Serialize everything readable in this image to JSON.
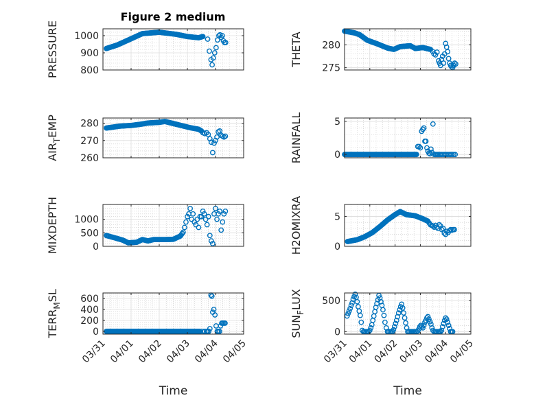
{
  "figure": {
    "title": "Figure 2 medium"
  },
  "colors": {
    "marker": "#0072BD",
    "axes": "#262626",
    "grid": "#c8c8c8",
    "background": "#ffffff"
  },
  "chart_data": [
    {
      "id": "pressure",
      "type": "scatter",
      "ylabel": "PRESSURE",
      "ylabel_parts": [
        [
          "PRESSURE",
          ""
        ]
      ],
      "title": "Figure 2 medium",
      "column": 0,
      "ylim": [
        800,
        1040
      ],
      "yticks": [
        800,
        900,
        1000
      ],
      "ytick_labels": [
        "800",
        "900",
        "1000"
      ],
      "xlim": [
        0,
        5
      ],
      "xticks": [
        0,
        1,
        2,
        3,
        4,
        5
      ],
      "xtick_labels": [
        "03/31",
        "04/01",
        "04/02",
        "04/03",
        "04/04",
        "04/05"
      ],
      "show_xticklabels": false,
      "x_units": "days since 03/31 00:00",
      "dense": [
        [
          0.12,
          925
        ],
        [
          0.5,
          945
        ],
        [
          1.0,
          982
        ],
        [
          1.4,
          1012
        ],
        [
          2.0,
          1020
        ],
        [
          2.6,
          1008
        ],
        [
          3.0,
          995
        ],
        [
          3.4,
          988
        ],
        [
          3.55,
          995
        ]
      ],
      "dense_spacing": 0.025,
      "x": [
        3.72,
        3.78,
        3.84,
        3.88,
        3.92,
        3.97,
        4.02,
        4.07,
        4.12,
        4.16,
        4.2,
        4.24,
        4.28,
        4.32,
        4.36
      ],
      "y": [
        980,
        910,
        860,
        830,
        870,
        900,
        930,
        975,
        1000,
        1005,
        990,
        1000,
        970,
        960,
        960
      ]
    },
    {
      "id": "theta",
      "type": "scatter",
      "ylabel": "THETA",
      "ylabel_parts": [
        [
          "THETA",
          ""
        ]
      ],
      "column": 1,
      "ylim": [
        274.5,
        283.5
      ],
      "yticks": [
        275,
        280
      ],
      "ytick_labels": [
        "275",
        "280"
      ],
      "xlim": [
        0,
        5
      ],
      "xticks": [
        0,
        1,
        2,
        3,
        4,
        5
      ],
      "xtick_labels": [
        "03/31",
        "04/01",
        "04/02",
        "04/03",
        "04/04",
        "04/05"
      ],
      "show_xticklabels": false,
      "x_units": "days since 03/31 00:00",
      "dense": [
        [
          0.0,
          283.0
        ],
        [
          0.4,
          282.6
        ],
        [
          0.6,
          282.2
        ],
        [
          0.9,
          281.0
        ],
        [
          1.3,
          280.2
        ],
        [
          1.7,
          279.3
        ],
        [
          1.95,
          279.0
        ],
        [
          2.2,
          279.6
        ],
        [
          2.6,
          279.8
        ],
        [
          2.8,
          279.2
        ],
        [
          3.1,
          279.4
        ],
        [
          3.4,
          279.0
        ]
      ],
      "dense_spacing": 0.025,
      "x": [
        3.48,
        3.54,
        3.6,
        3.66,
        3.72,
        3.76,
        3.8,
        3.84,
        3.88,
        3.92,
        3.96,
        4.0,
        4.04,
        4.08,
        4.12,
        4.16,
        4.2,
        4.24,
        4.28,
        4.32,
        4.36,
        4.4
      ],
      "y": [
        278.6,
        278.0,
        277.8,
        278.4,
        276.5,
        276.0,
        275.5,
        276.8,
        277.5,
        276.0,
        278.0,
        280.3,
        279.5,
        278.5,
        277.0,
        276.0,
        275.5,
        275.2,
        275.0,
        275.5,
        276.0,
        275.8
      ]
    },
    {
      "id": "air_temp",
      "type": "scatter",
      "ylabel": "AIR_TEMP",
      "ylabel_parts": [
        [
          "AIR",
          ""
        ],
        [
          "T",
          "sub"
        ],
        [
          "EMP",
          ""
        ]
      ],
      "column": 0,
      "ylim": [
        260,
        283
      ],
      "yticks": [
        260,
        270,
        280
      ],
      "ytick_labels": [
        "260",
        "270",
        "280"
      ],
      "xlim": [
        0,
        5
      ],
      "xticks": [
        0,
        1,
        2,
        3,
        4,
        5
      ],
      "xtick_labels": [
        "03/31",
        "04/01",
        "04/02",
        "04/03",
        "04/04",
        "04/05"
      ],
      "show_xticklabels": false,
      "x_units": "days since 03/31 00:00",
      "dense": [
        [
          0.12,
          277.2
        ],
        [
          0.6,
          278.3
        ],
        [
          1.0,
          278.7
        ],
        [
          1.3,
          279.3
        ],
        [
          1.6,
          280.1
        ],
        [
          2.0,
          280.5
        ],
        [
          2.2,
          281.0
        ],
        [
          2.5,
          279.8
        ],
        [
          2.8,
          278.6
        ],
        [
          3.1,
          277.4
        ],
        [
          3.4,
          276.5
        ],
        [
          3.5,
          275.5
        ]
      ],
      "dense_spacing": 0.025,
      "x": [
        3.55,
        3.62,
        3.68,
        3.74,
        3.8,
        3.85,
        3.9,
        3.95,
        4.0,
        4.05,
        4.1,
        4.15,
        4.2,
        4.25,
        4.3,
        4.35
      ],
      "y": [
        274.5,
        274.0,
        274.5,
        273.5,
        271.0,
        269.0,
        263.0,
        268.5,
        270.0,
        272.0,
        275.0,
        275.5,
        273.0,
        272.5,
        272.0,
        272.5
      ]
    },
    {
      "id": "rainfall",
      "type": "scatter",
      "ylabel": "RAINFALL",
      "ylabel_parts": [
        [
          "RAINFALL",
          ""
        ]
      ],
      "column": 1,
      "ylim": [
        -0.5,
        5.5
      ],
      "yticks": [
        0,
        5
      ],
      "ytick_labels": [
        "0",
        "5"
      ],
      "xlim": [
        0,
        5
      ],
      "xticks": [
        0,
        1,
        2,
        3,
        4,
        5
      ],
      "xtick_labels": [
        "03/31",
        "04/01",
        "04/02",
        "04/03",
        "04/04",
        "04/05"
      ],
      "show_xticklabels": false,
      "x_units": "days since 03/31 00:00",
      "dense": [
        [
          0.0,
          0.0
        ],
        [
          2.85,
          0.0
        ]
      ],
      "dense_spacing": 0.025,
      "x": [
        2.9,
        2.95,
        3.0,
        3.05,
        3.1,
        3.14,
        3.18,
        3.22,
        3.26,
        3.3,
        3.34,
        3.38,
        3.42,
        3.46,
        3.5,
        3.55,
        3.6,
        3.64,
        3.68,
        3.72,
        3.78,
        3.84,
        3.9,
        3.96,
        4.02,
        4.08,
        4.14,
        4.2,
        4.26,
        4.32,
        4.38
      ],
      "y": [
        1.2,
        1.2,
        1.0,
        3.5,
        3.8,
        4.0,
        2.0,
        2.0,
        1.0,
        0.5,
        0.2,
        0.1,
        0.8,
        0.3,
        4.6,
        0.0,
        0.0,
        0.0,
        0.0,
        0.0,
        0.0,
        0.0,
        0.0,
        0.0,
        0.0,
        0.0,
        0.0,
        0.0,
        0.0,
        0.0,
        0.0
      ]
    },
    {
      "id": "mixdepth",
      "type": "scatter",
      "ylabel": "MIXDEPTH",
      "ylabel_parts": [
        [
          "MIXDEPTH",
          ""
        ]
      ],
      "column": 0,
      "ylim": [
        0,
        1550
      ],
      "yticks": [
        0,
        500,
        1000
      ],
      "ytick_labels": [
        "0",
        "500",
        "1000"
      ],
      "xlim": [
        0,
        5
      ],
      "xticks": [
        0,
        1,
        2,
        3,
        4,
        5
      ],
      "xtick_labels": [
        "03/31",
        "04/01",
        "04/02",
        "04/03",
        "04/04",
        "04/05"
      ],
      "show_xticklabels": false,
      "x_units": "days since 03/31 00:00",
      "dense": [
        [
          0.12,
          400
        ],
        [
          0.4,
          320
        ],
        [
          0.7,
          230
        ],
        [
          0.9,
          130
        ],
        [
          1.2,
          150
        ],
        [
          1.4,
          250
        ],
        [
          1.6,
          200
        ],
        [
          1.8,
          250
        ],
        [
          2.2,
          250
        ],
        [
          2.5,
          260
        ],
        [
          2.75,
          380
        ],
        [
          2.85,
          520
        ]
      ],
      "dense_spacing": 0.03,
      "x": [
        2.9,
        2.95,
        3.0,
        3.05,
        3.1,
        3.15,
        3.2,
        3.25,
        3.3,
        3.35,
        3.4,
        3.45,
        3.5,
        3.55,
        3.6,
        3.65,
        3.7,
        3.75,
        3.8,
        3.85,
        3.9,
        3.95,
        4.0,
        4.05,
        4.1,
        4.15,
        4.2,
        4.25,
        4.3,
        4.35
      ],
      "y": [
        700,
        900,
        1100,
        1200,
        1400,
        1000,
        1200,
        900,
        800,
        1000,
        700,
        1100,
        1100,
        1300,
        1200,
        1000,
        800,
        1100,
        400,
        200,
        100,
        1200,
        1400,
        1000,
        1200,
        1300,
        600,
        900,
        1200,
        1300
      ]
    },
    {
      "id": "h2omixra",
      "type": "scatter",
      "ylabel": "H2OMIXRA",
      "ylabel_parts": [
        [
          "H2OMIXRA",
          ""
        ]
      ],
      "column": 1,
      "ylim": [
        0,
        7
      ],
      "yticks": [
        0,
        5
      ],
      "ytick_labels": [
        "0",
        "5"
      ],
      "xlim": [
        0,
        5
      ],
      "xticks": [
        0,
        1,
        2,
        3,
        4,
        5
      ],
      "xtick_labels": [
        "03/31",
        "04/01",
        "04/02",
        "04/03",
        "04/04",
        "04/05"
      ],
      "show_xticklabels": false,
      "x_units": "days since 03/31 00:00",
      "dense": [
        [
          0.12,
          0.8
        ],
        [
          0.5,
          1.1
        ],
        [
          0.8,
          1.6
        ],
        [
          1.1,
          2.3
        ],
        [
          1.4,
          3.3
        ],
        [
          1.7,
          4.4
        ],
        [
          2.0,
          5.3
        ],
        [
          2.2,
          5.8
        ],
        [
          2.45,
          5.3
        ],
        [
          2.8,
          5.1
        ],
        [
          3.1,
          4.6
        ],
        [
          3.3,
          4.2
        ]
      ],
      "dense_spacing": 0.025,
      "x": [
        3.35,
        3.4,
        3.45,
        3.5,
        3.55,
        3.6,
        3.65,
        3.7,
        3.75,
        3.8,
        3.85,
        3.9,
        3.95,
        4.0,
        4.05,
        4.1,
        4.15,
        4.2,
        4.25,
        4.3,
        4.35
      ],
      "y": [
        3.9,
        3.6,
        3.5,
        3.4,
        3.2,
        3.5,
        3.2,
        3.0,
        3.6,
        3.4,
        2.8,
        3.0,
        2.2,
        2.0,
        2.5,
        2.3,
        2.6,
        2.8,
        2.7,
        2.8,
        2.8
      ]
    },
    {
      "id": "terr_msl",
      "type": "scatter",
      "ylabel": "TERR_MSL",
      "ylabel_parts": [
        [
          "TERR",
          ""
        ],
        [
          "M",
          "sub"
        ],
        [
          "SL",
          ""
        ]
      ],
      "column": 0,
      "ylim": [
        -50,
        700
      ],
      "yticks": [
        0,
        200,
        400,
        600
      ],
      "ytick_labels": [
        "0",
        "200",
        "400",
        "600"
      ],
      "xlim": [
        0,
        5
      ],
      "xticks": [
        0,
        1,
        2,
        3,
        4,
        5
      ],
      "xtick_labels": [
        "03/31",
        "04/01",
        "04/02",
        "04/03",
        "04/04",
        "04/05"
      ],
      "show_xticklabels": true,
      "x_units": "days since 03/31 00:00",
      "xlabel": "Time",
      "dense": [
        [
          0.12,
          0
        ],
        [
          3.45,
          0
        ]
      ],
      "dense_spacing": 0.025,
      "x": [
        3.55,
        3.62,
        3.68,
        3.72,
        3.76,
        3.8,
        3.84,
        3.87,
        3.9,
        3.94,
        3.98,
        4.02,
        4.06,
        4.1,
        4.14,
        4.18,
        4.22,
        4.26,
        4.3,
        4.34
      ],
      "y": [
        0,
        0,
        0,
        0,
        0,
        50,
        660,
        640,
        350,
        400,
        300,
        100,
        0,
        0,
        0,
        100,
        150,
        150,
        150,
        150
      ]
    },
    {
      "id": "sun_flux",
      "type": "scatter",
      "ylabel": "SUN_FLUX",
      "ylabel_parts": [
        [
          "SUN",
          ""
        ],
        [
          "F",
          "sub"
        ],
        [
          "LUX",
          ""
        ]
      ],
      "column": 1,
      "ylim": [
        -40,
        620
      ],
      "yticks": [
        0,
        500
      ],
      "ytick_labels": [
        "0",
        "500"
      ],
      "xlim": [
        0,
        5
      ],
      "xticks": [
        0,
        1,
        2,
        3,
        4,
        5
      ],
      "xtick_labels": [
        "03/31",
        "04/01",
        "04/02",
        "04/03",
        "04/04",
        "04/05"
      ],
      "show_xticklabels": true,
      "x_units": "days since 03/31 00:00",
      "xlabel": "Time",
      "dense": [],
      "dense_spacing": 0.025,
      "x": [
        0.1,
        0.14,
        0.18,
        0.22,
        0.26,
        0.3,
        0.34,
        0.38,
        0.42,
        0.46,
        0.5,
        0.54,
        0.58,
        0.62,
        0.66,
        0.7,
        0.75,
        0.8,
        0.85,
        0.9,
        0.95,
        1.0,
        1.04,
        1.08,
        1.12,
        1.16,
        1.2,
        1.24,
        1.28,
        1.32,
        1.36,
        1.4,
        1.44,
        1.48,
        1.52,
        1.56,
        1.6,
        1.65,
        1.7,
        1.75,
        1.8,
        1.85,
        1.9,
        1.94,
        1.98,
        2.02,
        2.06,
        2.1,
        2.14,
        2.18,
        2.22,
        2.26,
        2.3,
        2.34,
        2.38,
        2.42,
        2.46,
        2.5,
        2.55,
        2.6,
        2.65,
        2.7,
        2.75,
        2.8,
        2.85,
        2.9,
        2.94,
        2.98,
        3.02,
        3.06,
        3.1,
        3.14,
        3.18,
        3.22,
        3.26,
        3.3,
        3.34,
        3.38,
        3.42,
        3.46,
        3.5,
        3.55,
        3.6,
        3.65,
        3.7,
        3.75,
        3.8,
        3.84,
        3.88,
        3.92,
        3.96,
        4.0,
        4.04,
        4.08,
        4.12,
        4.16,
        4.2,
        4.24,
        4.28
      ],
      "y": [
        250,
        290,
        330,
        370,
        420,
        460,
        520,
        560,
        600,
        550,
        480,
        400,
        330,
        260,
        150,
        20,
        0,
        0,
        0,
        0,
        0,
        20,
        60,
        110,
        180,
        250,
        320,
        390,
        450,
        510,
        580,
        540,
        480,
        420,
        350,
        260,
        150,
        60,
        0,
        0,
        0,
        0,
        0,
        30,
        80,
        130,
        180,
        240,
        300,
        350,
        400,
        440,
        380,
        300,
        220,
        140,
        60,
        0,
        0,
        0,
        0,
        0,
        0,
        0,
        0,
        10,
        40,
        80,
        100,
        80,
        60,
        100,
        150,
        180,
        220,
        240,
        200,
        160,
        120,
        60,
        20,
        0,
        0,
        0,
        0,
        0,
        0,
        20,
        80,
        130,
        180,
        220,
        200,
        150,
        100,
        50,
        0,
        0,
        0
      ]
    }
  ]
}
